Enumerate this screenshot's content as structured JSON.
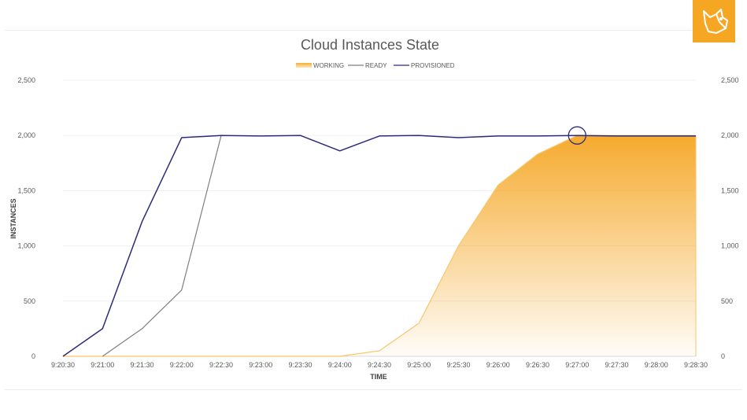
{
  "chart_data": {
    "type": "line",
    "title": "Cloud Instances State",
    "xlabel": "TIME",
    "ylabel": "INSTANCES",
    "ylim": [
      0,
      2500
    ],
    "yticks": [
      "0",
      "500",
      "1,000",
      "1,500",
      "2,000",
      "2,500"
    ],
    "ytick_values": [
      0,
      500,
      1000,
      1500,
      2000,
      2500
    ],
    "right_axis": true,
    "grid": true,
    "legend_position": "top",
    "x": [
      "9:20:30",
      "9:21:00",
      "9:21:30",
      "9:22:00",
      "9:22:30",
      "9:23:00",
      "9:23:30",
      "9:24:00",
      "9:24:30",
      "9:25:00",
      "9:25:30",
      "9:26:00",
      "9:26:30",
      "9:27:00",
      "9:27:30",
      "9:28:00",
      "9:28:30"
    ],
    "series": [
      {
        "name": "WORKING",
        "kind": "area",
        "color": "#f5a623",
        "values": [
          0,
          0,
          0,
          0,
          0,
          0,
          0,
          0,
          50,
          300,
          1000,
          1550,
          1830,
          2000,
          2000,
          2000,
          2000
        ]
      },
      {
        "name": "READY",
        "kind": "line",
        "color": "#7f7f7f",
        "values": [
          null,
          0,
          250,
          600,
          2000,
          null,
          null,
          null,
          null,
          null,
          null,
          null,
          null,
          null,
          null,
          null,
          null
        ]
      },
      {
        "name": "PROVISIONED",
        "kind": "line",
        "color": "#2e2a7a",
        "values": [
          0,
          250,
          1220,
          1980,
          2000,
          1995,
          2000,
          1860,
          1995,
          2000,
          1980,
          1995,
          1995,
          2000,
          1995,
          1995,
          1995
        ]
      }
    ],
    "annotation": {
      "type": "circle",
      "x": "9:27:00",
      "y": 2000,
      "color": "#2e2a7a"
    }
  },
  "logo": {
    "name": "fox-logo-icon",
    "color": "#f5a623"
  }
}
